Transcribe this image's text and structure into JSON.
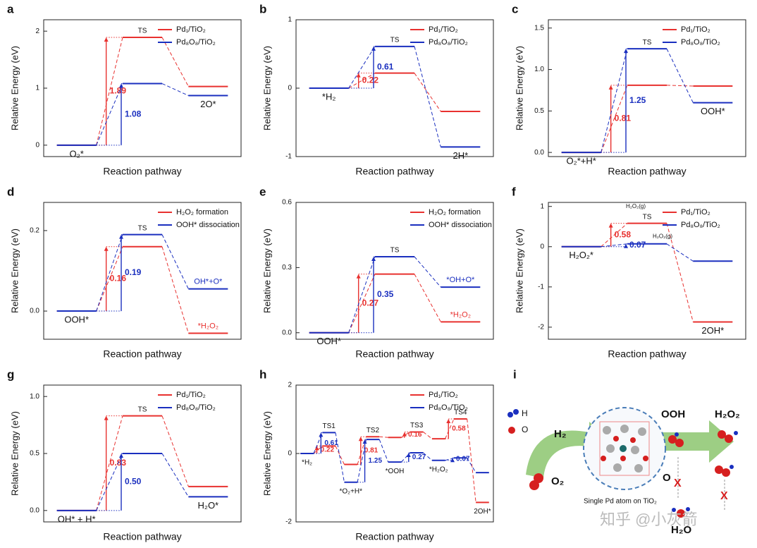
{
  "chart_data": [
    {
      "type": "energy",
      "label": "a",
      "ylabel": "Relative Energy (eV)",
      "xlabel": "Reaction pathway",
      "ylim": [
        -0.2,
        2.2
      ],
      "yticks": [
        0,
        1,
        2
      ],
      "legend": "upper right",
      "states": [
        "O₂*",
        "TS",
        "2O*"
      ],
      "series": [
        {
          "name": "Pd₁/TiO₂",
          "color": "#e8312f",
          "values": [
            0,
            1.89,
            1.03
          ],
          "barriers": [
            1.89
          ],
          "barrier_labels": [
            "1.89"
          ]
        },
        {
          "name": "Pd₈O₈/TiO₂",
          "color": "#1a2fbf",
          "values": [
            0,
            1.08,
            0.87
          ],
          "barriers": [
            1.08
          ],
          "barrier_labels": [
            "1.08"
          ]
        }
      ]
    },
    {
      "type": "energy",
      "label": "b",
      "ylabel": "Relative Energy (eV)",
      "xlabel": "Reaction pathway",
      "ylim": [
        -1,
        1
      ],
      "yticks": [
        -1,
        0,
        1
      ],
      "legend": "upper right",
      "states": [
        "*H₂",
        "TS",
        "2H*"
      ],
      "series": [
        {
          "name": "Pd₁/TiO₂",
          "color": "#e8312f",
          "values": [
            0,
            0.22,
            -0.34
          ],
          "barriers": [
            0.22
          ],
          "barrier_labels": [
            "0.22"
          ]
        },
        {
          "name": "Pd₈O₈/TiO₂",
          "color": "#1a2fbf",
          "values": [
            0,
            0.61,
            -0.86
          ],
          "barriers": [
            0.61
          ],
          "barrier_labels": [
            "0.61"
          ]
        }
      ]
    },
    {
      "type": "energy",
      "label": "c",
      "ylabel": "Relative Energy (eV)",
      "xlabel": "Reaction pathway",
      "ylim": [
        -0.05,
        1.6
      ],
      "yticks": [
        {
          "value": 0,
          "label": "0.0"
        },
        0.5,
        {
          "value": 1,
          "label": "1.0"
        },
        1.5
      ],
      "legend": "upper right",
      "states": [
        "O₂*+H*",
        "TS",
        "OOH*"
      ],
      "series": [
        {
          "name": "Pd₁/TiO₂",
          "color": "#e8312f",
          "values": [
            0,
            0.81,
            0.8
          ],
          "barriers": [
            0.81
          ],
          "barrier_labels": [
            "0.81"
          ]
        },
        {
          "name": "Pd₈O₈/TiO₂",
          "color": "#1a2fbf",
          "values": [
            0,
            1.25,
            0.6
          ],
          "barriers": [
            1.25
          ],
          "barrier_labels": [
            "1.25"
          ]
        }
      ]
    },
    {
      "type": "energy",
      "label": "d",
      "ylabel": "Relative Energy (eV)",
      "xlabel": "Reaction pathway",
      "ylim": [
        -0.07,
        0.27
      ],
      "yticks": [
        {
          "value": 0,
          "label": "0.0"
        },
        0.2
      ],
      "legend": "upper right",
      "states": [
        "OOH*",
        "TS",
        null
      ],
      "series": [
        {
          "name": "H₂O₂ formation",
          "color": "#e8312f",
          "values": [
            0,
            0.16,
            -0.055
          ],
          "barriers": [
            0.16
          ],
          "barrier_labels": [
            "0.16"
          ],
          "end_label": "*H₂O₂"
        },
        {
          "name": "OOH* dissociation",
          "color": "#1a2fbf",
          "values": [
            0,
            0.19,
            0.055
          ],
          "barriers": [
            0.19
          ],
          "barrier_labels": [
            "0.19"
          ],
          "end_label": "OH*+O*"
        }
      ]
    },
    {
      "type": "energy",
      "label": "e",
      "ylabel": "Relative Energy (eV)",
      "xlabel": "Reaction pathway",
      "ylim": [
        -0.03,
        0.6
      ],
      "yticks": [
        {
          "value": 0,
          "label": "0.0"
        },
        0.3,
        0.6
      ],
      "legend": "upper right",
      "states": [
        "OOH*",
        "TS",
        null
      ],
      "series": [
        {
          "name": "H₂O₂ formation",
          "color": "#e8312f",
          "values": [
            0,
            0.27,
            0.05
          ],
          "barriers": [
            0.27
          ],
          "barrier_labels": [
            "0.27"
          ],
          "end_label": "*H₂O₂"
        },
        {
          "name": "OOH* dissociation",
          "color": "#1a2fbf",
          "values": [
            0,
            0.35,
            0.21
          ],
          "barriers": [
            0.35
          ],
          "barrier_labels": [
            "0.35"
          ],
          "end_label": "*OH+O*"
        }
      ]
    },
    {
      "type": "energy",
      "label": "f",
      "ylabel": "Relative Energy (eV)",
      "xlabel": "Reaction pathway",
      "ylim": [
        -2.3,
        1.1
      ],
      "yticks": [
        -2,
        -1,
        0,
        1
      ],
      "legend": "upper right",
      "states": [
        "H₂O₂*",
        "TS",
        "2OH*"
      ],
      "annotations": [
        "H₂O₂(g)",
        "H₂O₂(g)"
      ],
      "series": [
        {
          "name": "Pd₁/TiO₂",
          "color": "#e8312f",
          "values": [
            0,
            0.58,
            -1.87
          ],
          "barriers": [
            0.58
          ],
          "barrier_labels": [
            "0.58"
          ]
        },
        {
          "name": "Pd₈O₈/TiO₂",
          "color": "#1a2fbf",
          "values": [
            0,
            0.07,
            -0.36
          ],
          "barriers": [
            0.07
          ],
          "barrier_labels": [
            "0.07"
          ]
        }
      ]
    },
    {
      "type": "energy",
      "label": "g",
      "ylabel": "Relative Energy (eV)",
      "xlabel": "Reaction pathway",
      "ylim": [
        -0.1,
        1.1
      ],
      "yticks": [
        {
          "value": 0,
          "label": "0.0"
        },
        0.5,
        {
          "value": 1,
          "label": "1.0"
        }
      ],
      "legend": "upper right",
      "states": [
        "OH* + H*",
        "TS",
        "H₂O*"
      ],
      "series": [
        {
          "name": "Pd₁/TiO₂",
          "color": "#e8312f",
          "values": [
            0,
            0.83,
            0.21
          ],
          "barriers": [
            0.83
          ],
          "barrier_labels": [
            "0.83"
          ]
        },
        {
          "name": "Pd₈O₈/TiO₂",
          "color": "#1a2fbf",
          "values": [
            0,
            0.5,
            0.12
          ],
          "barriers": [
            0.5
          ],
          "barrier_labels": [
            "0.50"
          ]
        }
      ]
    },
    {
      "type": "energy",
      "label": "h",
      "ylabel": "Relative Energy (eV)",
      "xlabel": "Reaction pathway",
      "ylim": [
        -2,
        2
      ],
      "yticks": [
        -2,
        0,
        2
      ],
      "legend": "upper right",
      "states": [
        "*H₂",
        "TS1",
        "*O₂+H*",
        "TS2",
        "*OOH",
        "TS3",
        "*H₂O₂",
        "TS4",
        "2OH*"
      ],
      "series": [
        {
          "name": "Pd₁/TiO₂",
          "color": "#e8312f",
          "values": [
            0,
            0.22,
            -0.32,
            0.49,
            0.47,
            0.63,
            0.43,
            1.01,
            -1.43
          ],
          "barriers": [
            0.22,
            0.81,
            0.16,
            0.58
          ],
          "barrier_labels": [
            "0.22",
            "0.81",
            "0.16",
            "0.58"
          ]
        },
        {
          "name": "Pd₈O₈/TiO₂",
          "color": "#1a2fbf",
          "values": [
            0,
            0.61,
            -0.84,
            0.41,
            -0.25,
            0.02,
            -0.2,
            -0.13,
            -0.56
          ],
          "barriers": [
            0.61,
            1.25,
            0.27,
            0.07
          ],
          "barrier_labels": [
            "0.61",
            "1.25",
            "0.27",
            "0.07"
          ]
        }
      ]
    }
  ],
  "illustration": {
    "label": "i",
    "legend_h": "H",
    "legend_o": "O",
    "reactant_1": "H₂",
    "reactant_2": "O₂",
    "intermediate": "OOH",
    "product": "H₂O₂",
    "side": "O",
    "blocked_1": "X",
    "blocked_2": "X",
    "byproduct": "H₂O",
    "caption": "Single Pd atom on TiO₂",
    "watermark": "知乎 @小灰箭"
  }
}
